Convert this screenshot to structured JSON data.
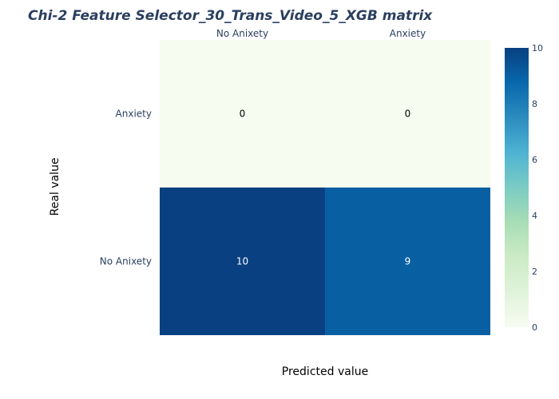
{
  "chart_data": {
    "type": "heatmap",
    "title": "Chi-2 Feature Selector_30_Trans_Video_5_XGB matrix",
    "xlabel": "Predicted value",
    "ylabel": "Real value",
    "x_categories": [
      "No Anixety",
      "Anxiety"
    ],
    "y_categories": [
      "No Anixety",
      "Anxiety"
    ],
    "z": [
      [
        10,
        9
      ],
      [
        0,
        0
      ]
    ],
    "colorscale": "GnBu",
    "zmin": 0,
    "zmax": 10,
    "colorbar_ticks": [
      "0",
      "2",
      "4",
      "6",
      "8",
      "10"
    ],
    "x_axis_side": "top"
  }
}
